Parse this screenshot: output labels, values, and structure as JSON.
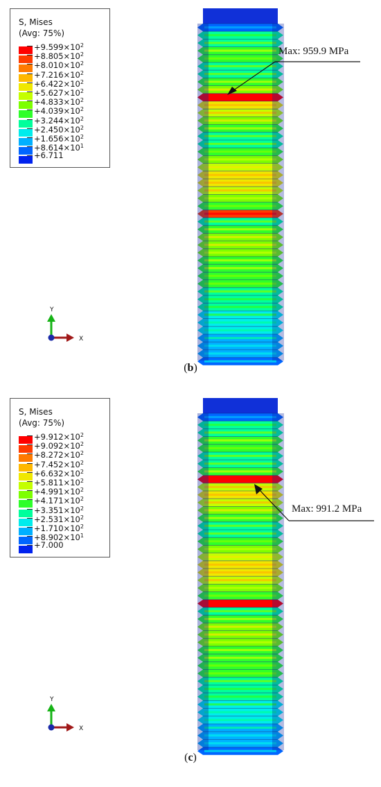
{
  "panels": [
    {
      "id": "b",
      "caption_open": "(",
      "caption_letter": "b",
      "caption_close": ")",
      "legend": {
        "title_line1": "S, Mises",
        "title_line2": "(Avg: 75%)",
        "labels": [
          {
            "mantissa": "+9.599×10",
            "exp": "2"
          },
          {
            "mantissa": "+8.805×10",
            "exp": "2"
          },
          {
            "mantissa": "+8.010×10",
            "exp": "2"
          },
          {
            "mantissa": "+7.216×10",
            "exp": "2"
          },
          {
            "mantissa": "+6.422×10",
            "exp": "2"
          },
          {
            "mantissa": "+5.627×10",
            "exp": "2"
          },
          {
            "mantissa": "+4.833×10",
            "exp": "2"
          },
          {
            "mantissa": "+4.039×10",
            "exp": "2"
          },
          {
            "mantissa": "+3.244×10",
            "exp": "2"
          },
          {
            "mantissa": "+2.450×10",
            "exp": "2"
          },
          {
            "mantissa": "+1.656×10",
            "exp": "2"
          },
          {
            "mantissa": "+8.614×10",
            "exp": "1"
          },
          {
            "mantissa": "+6.711",
            "exp": ""
          }
        ]
      },
      "axes": {
        "y": "Y",
        "x": "X"
      },
      "callout": "Max: 959.9 MPa"
    },
    {
      "id": "c",
      "caption_open": "(",
      "caption_letter": "c",
      "caption_close": ")",
      "legend": {
        "title_line1": "S, Mises",
        "title_line2": "(Avg: 75%)",
        "labels": [
          {
            "mantissa": "+9.912×10",
            "exp": "2"
          },
          {
            "mantissa": "+9.092×10",
            "exp": "2"
          },
          {
            "mantissa": "+8.272×10",
            "exp": "2"
          },
          {
            "mantissa": "+7.452×10",
            "exp": "2"
          },
          {
            "mantissa": "+6.632×10",
            "exp": "2"
          },
          {
            "mantissa": "+5.811×10",
            "exp": "2"
          },
          {
            "mantissa": "+4.991×10",
            "exp": "2"
          },
          {
            "mantissa": "+4.171×10",
            "exp": "2"
          },
          {
            "mantissa": "+3.351×10",
            "exp": "2"
          },
          {
            "mantissa": "+2.531×10",
            "exp": "2"
          },
          {
            "mantissa": "+1.710×10",
            "exp": "2"
          },
          {
            "mantissa": "+8.902×10",
            "exp": "1"
          },
          {
            "mantissa": "+7.000",
            "exp": ""
          }
        ]
      },
      "axes": {
        "y": "Y",
        "x": "X"
      },
      "callout": "Max: 991.2 MPa"
    }
  ],
  "colormap": [
    "#ff0000",
    "#ff3b00",
    "#ff7a00",
    "#ffb800",
    "#f0e800",
    "#c4ff00",
    "#7cff00",
    "#2eff2a",
    "#00ff9c",
    "#00ecec",
    "#00b0ff",
    "#0066ff",
    "#0022ee"
  ],
  "axis_colors": {
    "x": "#a01818",
    "y": "#16b316",
    "origin": "#1a2aa8"
  }
}
